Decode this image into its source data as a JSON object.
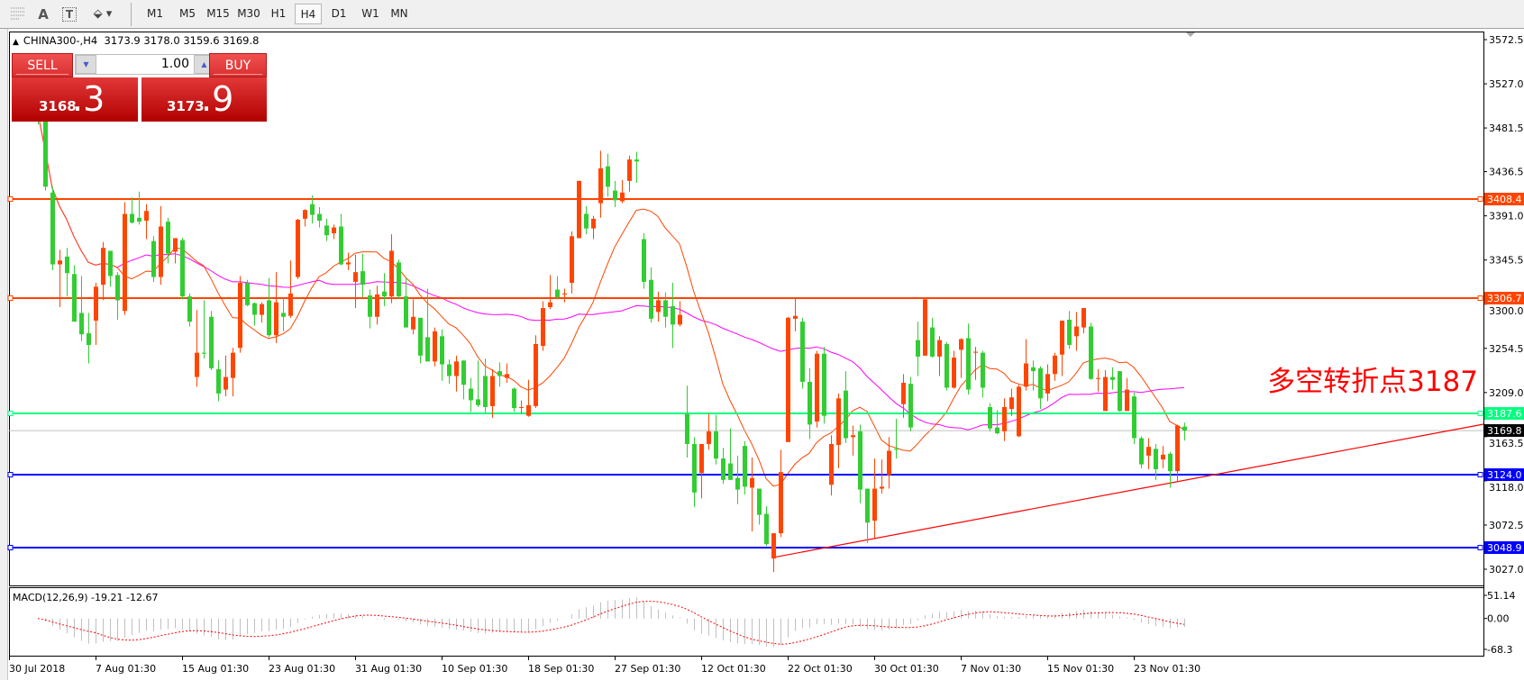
{
  "toolbar": {
    "icons": [
      "grid-icon",
      "text-icon",
      "text-label-icon",
      "arrows-icon"
    ],
    "text_tool": "A",
    "label_tool": "T",
    "timeframes": [
      "M1",
      "M5",
      "M15",
      "M30",
      "H1",
      "H4",
      "D1",
      "W1",
      "MN"
    ],
    "active_timeframe": "H4"
  },
  "chart_header": {
    "symbol": "CHINA300-,H4",
    "open": "3173.9",
    "high": "3178.0",
    "low": "3159.6",
    "close": "3169.8"
  },
  "trade_panel": {
    "sell_label": "SELL",
    "buy_label": "BUY",
    "lot": "1.00",
    "sell_price_main": "3168",
    "sell_price_frac": ".3",
    "buy_price_main": "3173",
    "buy_price_frac": ".9"
  },
  "colors": {
    "bull_candle": "#FF4500",
    "bear_candle": "#32CD32",
    "resistance_line": "#FF4500",
    "pivot_line": "#00FF7F",
    "support_line": "#0000FF",
    "fast_ma": "#FF4500",
    "slow_ma": "#FF00FF",
    "trendline": "#FF0000",
    "macd_hist": "#C0C0C0",
    "macd_signal": "#FF0000"
  },
  "chart_data": {
    "type": "candlestick",
    "ylim": [
      3027.0,
      3572.5
    ],
    "y_ticks": [
      "3572.5",
      "3527.0",
      "3481.5",
      "3436.5",
      "3391.0",
      "3345.5",
      "3300.0",
      "3254.5",
      "3209.0",
      "3163.5",
      "3118.0",
      "3072.5",
      "3027.0"
    ],
    "x_ticks": [
      "30 Jul 2018",
      "7 Aug 01:30",
      "15 Aug 01:30",
      "23 Aug 01:30",
      "31 Aug 01:30",
      "10 Sep 01:30",
      "18 Sep 01:30",
      "27 Sep 01:30",
      "12 Oct 01:30",
      "22 Oct 01:30",
      "30 Oct 01:30",
      "7 Nov 01:30",
      "15 Nov 01:30",
      "23 Nov 01:30"
    ],
    "ohlc": [
      [
        3516,
        3521,
        3485,
        3497
      ],
      [
        3497,
        3502,
        3417,
        3421
      ],
      [
        3415,
        3421,
        3335,
        3341
      ],
      [
        3341,
        3356,
        3297,
        3345
      ],
      [
        3349,
        3358,
        3308,
        3332
      ],
      [
        3331,
        3340,
        3282,
        3282
      ],
      [
        3291,
        3329,
        3262,
        3269
      ],
      [
        3270,
        3291,
        3239,
        3258
      ],
      [
        3283,
        3322,
        3258,
        3318
      ],
      [
        3320,
        3364,
        3304,
        3358
      ],
      [
        3355,
        3355,
        3318,
        3329
      ],
      [
        3330,
        3333,
        3284,
        3304
      ],
      [
        3293,
        3405,
        3289,
        3393
      ],
      [
        3393,
        3410,
        3383,
        3384
      ],
      [
        3389,
        3416,
        3382,
        3385
      ],
      [
        3386,
        3403,
        3367,
        3396
      ],
      [
        3365,
        3370,
        3323,
        3328
      ],
      [
        3328,
        3401,
        3320,
        3380
      ],
      [
        3385,
        3389,
        3342,
        3352
      ],
      [
        3354,
        3368,
        3342,
        3368
      ],
      [
        3366,
        3368,
        3305,
        3308
      ],
      [
        3308,
        3311,
        3277,
        3282
      ],
      [
        3225,
        3294,
        3215,
        3250
      ],
      [
        3250,
        3304,
        3244,
        3249
      ],
      [
        3287,
        3293,
        3232,
        3234
      ],
      [
        3233,
        3242,
        3200,
        3208
      ],
      [
        3212,
        3247,
        3205,
        3225
      ],
      [
        3224,
        3255,
        3205,
        3250
      ],
      [
        3255,
        3329,
        3250,
        3322
      ],
      [
        3322,
        3325,
        3298,
        3299
      ],
      [
        3301,
        3302,
        3278,
        3289
      ],
      [
        3289,
        3302,
        3281,
        3300
      ],
      [
        3304,
        3327,
        3266,
        3268
      ],
      [
        3268,
        3333,
        3260,
        3302
      ],
      [
        3291,
        3307,
        3272,
        3287
      ],
      [
        3288,
        3345,
        3286,
        3311
      ],
      [
        3328,
        3388,
        3326,
        3387
      ],
      [
        3388,
        3398,
        3380,
        3397
      ],
      [
        3403,
        3412,
        3383,
        3392
      ],
      [
        3393,
        3400,
        3379,
        3386
      ],
      [
        3381,
        3388,
        3365,
        3371
      ],
      [
        3373,
        3382,
        3367,
        3379
      ],
      [
        3380,
        3393,
        3340,
        3341
      ],
      [
        3341,
        3353,
        3335,
        3343
      ],
      [
        3323,
        3351,
        3296,
        3333
      ],
      [
        3334,
        3352,
        3307,
        3320
      ],
      [
        3309,
        3315,
        3275,
        3287
      ],
      [
        3287,
        3319,
        3279,
        3310
      ],
      [
        3313,
        3332,
        3298,
        3308
      ],
      [
        3308,
        3372,
        3301,
        3355
      ],
      [
        3343,
        3346,
        3306,
        3308
      ],
      [
        3308,
        3328,
        3276,
        3276
      ],
      [
        3274,
        3305,
        3269,
        3287
      ],
      [
        3286,
        3286,
        3239,
        3247
      ],
      [
        3266,
        3316,
        3241,
        3241
      ],
      [
        3241,
        3276,
        3236,
        3272
      ],
      [
        3267,
        3274,
        3221,
        3238
      ],
      [
        3238,
        3243,
        3218,
        3226
      ],
      [
        3226,
        3247,
        3210,
        3241
      ],
      [
        3242,
        3242,
        3202,
        3217
      ],
      [
        3213,
        3224,
        3189,
        3201
      ],
      [
        3202,
        3242,
        3194,
        3196
      ],
      [
        3226,
        3244,
        3188,
        3194
      ],
      [
        3195,
        3233,
        3183,
        3226
      ],
      [
        3231,
        3240,
        3215,
        3226
      ],
      [
        3224,
        3239,
        3219,
        3228
      ],
      [
        3213,
        3214,
        3189,
        3193
      ],
      [
        3194,
        3201,
        3187,
        3194
      ],
      [
        3185,
        3222,
        3184,
        3196
      ],
      [
        3195,
        3268,
        3193,
        3259
      ],
      [
        3257,
        3303,
        3252,
        3296
      ],
      [
        3297,
        3330,
        3295,
        3302
      ],
      [
        3315,
        3329,
        3305,
        3307
      ],
      [
        3310,
        3316,
        3302,
        3311
      ],
      [
        3322,
        3375,
        3311,
        3370
      ],
      [
        3368,
        3427,
        3368,
        3427
      ],
      [
        3393,
        3401,
        3372,
        3378
      ],
      [
        3378,
        3391,
        3367,
        3388
      ],
      [
        3404,
        3458,
        3389,
        3440
      ],
      [
        3442,
        3455,
        3411,
        3421
      ],
      [
        3417,
        3427,
        3400,
        3407
      ],
      [
        3406,
        3428,
        3404,
        3415
      ],
      [
        3427,
        3453,
        3416,
        3449
      ],
      [
        3449,
        3457,
        3425,
        3447
      ],
      [
        3367,
        3373,
        3316,
        3323
      ],
      [
        3325,
        3338,
        3281,
        3285
      ],
      [
        3292,
        3313,
        3282,
        3304
      ],
      [
        3304,
        3312,
        3276,
        3287
      ],
      [
        3298,
        3322,
        3255,
        3279
      ],
      [
        3279,
        3303,
        3277,
        3289
      ],
      [
        3187,
        3216,
        3142,
        3156
      ],
      [
        3156,
        3163,
        3091,
        3106
      ],
      [
        3126,
        3156,
        3100,
        3156
      ],
      [
        3156,
        3187,
        3150,
        3169
      ],
      [
        3169,
        3186,
        3135,
        3141
      ],
      [
        3141,
        3152,
        3115,
        3119
      ],
      [
        3136,
        3172,
        3119,
        3119
      ],
      [
        3121,
        3144,
        3094,
        3109
      ],
      [
        3154,
        3159,
        3104,
        3112
      ],
      [
        3111,
        3142,
        3066,
        3121
      ],
      [
        3110,
        3110,
        3073,
        3083
      ],
      [
        3084,
        3092,
        3051,
        3053
      ],
      [
        3038,
        3064,
        3024,
        3064
      ],
      [
        3064,
        3150,
        3060,
        3127
      ],
      [
        3158,
        3287,
        3158,
        3286
      ],
      [
        3285,
        3307,
        3272,
        3288
      ],
      [
        3282,
        3286,
        3213,
        3220
      ],
      [
        3220,
        3234,
        3161,
        3176
      ],
      [
        3179,
        3252,
        3173,
        3249
      ],
      [
        3249,
        3256,
        3177,
        3185
      ],
      [
        3114,
        3165,
        3103,
        3156
      ],
      [
        3155,
        3208,
        3131,
        3203
      ],
      [
        3211,
        3231,
        3157,
        3162
      ],
      [
        3163,
        3175,
        3144,
        3165
      ],
      [
        3169,
        3176,
        3095,
        3109
      ],
      [
        3110,
        3110,
        3054,
        3075
      ],
      [
        3077,
        3141,
        3059,
        3110
      ],
      [
        3110,
        3140,
        3105,
        3112
      ],
      [
        3124,
        3163,
        3110,
        3149
      ],
      [
        3151,
        3182,
        3141,
        3150
      ],
      [
        3197,
        3228,
        3183,
        3219
      ],
      [
        3218,
        3225,
        3169,
        3173
      ],
      [
        3263,
        3282,
        3226,
        3246
      ],
      [
        3247,
        3307,
        3247,
        3305
      ],
      [
        3276,
        3286,
        3245,
        3246
      ],
      [
        3246,
        3267,
        3226,
        3263
      ],
      [
        3259,
        3261,
        3211,
        3214
      ],
      [
        3214,
        3252,
        3213,
        3245
      ],
      [
        3253,
        3265,
        3224,
        3264
      ],
      [
        3265,
        3280,
        3207,
        3212
      ],
      [
        3250,
        3256,
        3222,
        3251
      ],
      [
        3250,
        3252,
        3204,
        3214
      ],
      [
        3194,
        3198,
        3169,
        3172
      ],
      [
        3173,
        3191,
        3166,
        3167
      ],
      [
        3169,
        3203,
        3159,
        3194
      ],
      [
        3192,
        3213,
        3185,
        3204
      ],
      [
        3164,
        3217,
        3163,
        3215
      ],
      [
        3215,
        3264,
        3211,
        3239
      ],
      [
        3235,
        3242,
        3211,
        3231
      ],
      [
        3234,
        3236,
        3192,
        3203
      ],
      [
        3208,
        3238,
        3200,
        3228
      ],
      [
        3228,
        3250,
        3221,
        3247
      ],
      [
        3248,
        3283,
        3226,
        3283
      ],
      [
        3284,
        3293,
        3254,
        3258
      ],
      [
        3267,
        3292,
        3252,
        3277
      ],
      [
        3276,
        3296,
        3270,
        3296
      ],
      [
        3277,
        3281,
        3222,
        3223
      ],
      [
        3223,
        3233,
        3210,
        3224
      ],
      [
        3190,
        3232,
        3190,
        3225
      ],
      [
        3225,
        3235,
        3212,
        3222
      ],
      [
        3231,
        3231,
        3189,
        3190
      ],
      [
        3190,
        3224,
        3190,
        3212
      ],
      [
        3205,
        3209,
        3156,
        3162
      ],
      [
        3162,
        3164,
        3131,
        3135
      ],
      [
        3144,
        3162,
        3130,
        3153
      ],
      [
        3151,
        3156,
        3119,
        3130
      ],
      [
        3140,
        3154,
        3131,
        3145
      ],
      [
        3146,
        3148,
        3111,
        3128
      ],
      [
        3128,
        3176,
        3118,
        3175
      ],
      [
        3173.9,
        3178.0,
        3159.6,
        3169.8
      ]
    ],
    "horizontal_lines": [
      {
        "price": 3408.4,
        "label": "3408.4",
        "color": "#FF4500",
        "kind": "resistance"
      },
      {
        "price": 3306.7,
        "label": "3306.7",
        "color": "#FF4500",
        "kind": "resistance"
      },
      {
        "price": 3187.6,
        "label": "3187.6",
        "color": "#00FF7F",
        "kind": "pivot"
      },
      {
        "price": 3124.0,
        "label": "3124.0",
        "color": "#0000FF",
        "kind": "support"
      },
      {
        "price": 3048.9,
        "label": "3048.9",
        "color": "#0000FF",
        "kind": "support"
      }
    ],
    "current_price": {
      "price": 3169.8,
      "label": "3169.8"
    },
    "trendline": {
      "start_candle": 102,
      "start_price": 3039.1,
      "end_price": 3176.4,
      "color": "#FF0000"
    },
    "annotation": {
      "text": "多空转折点3187",
      "color": "#FF0000"
    },
    "moving_averages": [
      {
        "color": "#FF4500"
      },
      {
        "color": "#FF00FF"
      }
    ],
    "macd": {
      "label": "MACD(12,26,9) -19.21 -12.67",
      "y_ticks": [
        "51.14",
        "0.00",
        "-68.3"
      ],
      "ylim": [
        -68.3,
        51.14
      ]
    }
  }
}
